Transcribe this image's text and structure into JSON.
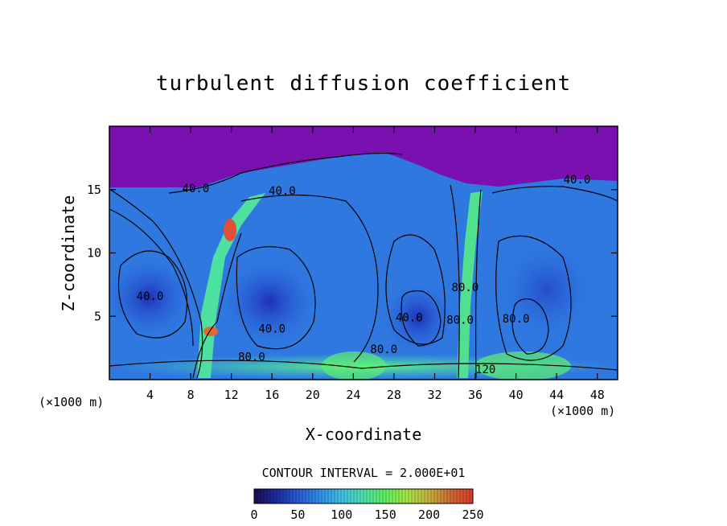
{
  "chart_data": {
    "type": "heatmap",
    "title": "turbulent diffusion coefficient",
    "xlabel": "X-coordinate",
    "ylabel": "Z-coordinate",
    "x_unit": "(×1000 m)",
    "z_unit": "(×1000 m)",
    "xlim": [
      0,
      50
    ],
    "ylim": [
      0,
      20
    ],
    "x_ticks": [
      4,
      8,
      12,
      16,
      20,
      24,
      28,
      32,
      36,
      40,
      44,
      48
    ],
    "y_ticks": [
      5,
      10,
      15
    ],
    "contour_interval_text": "CONTOUR INTERVAL = 2.000E+01",
    "colorbar": {
      "range": [
        0,
        250
      ],
      "ticks": [
        0,
        50,
        100,
        150,
        200,
        250
      ],
      "colors": [
        "#1a0f4a",
        "#1b2a9e",
        "#2a5ad6",
        "#2f8ee8",
        "#3fc0e8",
        "#4ee0a8",
        "#5ff060",
        "#a6e640",
        "#c8b040",
        "#d06a30",
        "#e03a2a"
      ]
    },
    "contour_labels": [
      {
        "x": 8.5,
        "z": 14.8,
        "text": "40.0"
      },
      {
        "x": 17.0,
        "z": 14.6,
        "text": "40.0"
      },
      {
        "x": 4.0,
        "z": 6.3,
        "text": "40.0"
      },
      {
        "x": 16.0,
        "z": 3.7,
        "text": "40.0"
      },
      {
        "x": 14.0,
        "z": 1.5,
        "text": "80.0"
      },
      {
        "x": 27.0,
        "z": 2.1,
        "text": "80.0"
      },
      {
        "x": 29.5,
        "z": 4.6,
        "text": "40.0"
      },
      {
        "x": 35.0,
        "z": 7.0,
        "text": "80.0"
      },
      {
        "x": 34.5,
        "z": 4.4,
        "text": "80.0"
      },
      {
        "x": 40.0,
        "z": 4.5,
        "text": "80.0"
      },
      {
        "x": 46.0,
        "z": 15.5,
        "text": "40.0"
      },
      {
        "x": 37.0,
        "z": 0.5,
        "text": "120"
      }
    ]
  }
}
